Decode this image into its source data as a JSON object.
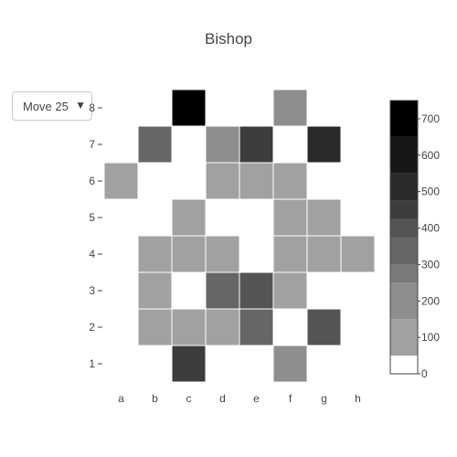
{
  "title": "Bishop",
  "dropdown": {
    "selected": "Move 25",
    "arrow_icon": "triangle-down-icon"
  },
  "chart_data": {
    "type": "heatmap",
    "title": "Bishop",
    "x_categories": [
      "a",
      "b",
      "c",
      "d",
      "e",
      "f",
      "g",
      "h"
    ],
    "y_categories": [
      "1",
      "2",
      "3",
      "4",
      "5",
      "6",
      "7",
      "8"
    ],
    "z": [
      [
        0,
        0,
        450,
        0,
        0,
        250,
        0,
        0
      ],
      [
        0,
        100,
        100,
        100,
        350,
        0,
        400,
        0
      ],
      [
        0,
        100,
        0,
        350,
        400,
        100,
        0,
        0
      ],
      [
        0,
        100,
        100,
        100,
        0,
        100,
        100,
        100
      ],
      [
        0,
        0,
        100,
        0,
        0,
        100,
        100,
        0
      ],
      [
        100,
        0,
        0,
        100,
        100,
        100,
        0,
        0
      ],
      [
        0,
        350,
        0,
        200,
        450,
        0,
        500,
        0
      ],
      [
        0,
        0,
        750,
        0,
        0,
        200,
        0,
        0
      ]
    ],
    "colorscale": {
      "min": 0,
      "max": 750,
      "ticks": [
        0,
        100,
        200,
        300,
        400,
        500,
        600,
        700
      ],
      "bands": [
        {
          "from": 0,
          "to": 50,
          "color": "#ffffff"
        },
        {
          "from": 50,
          "to": 150,
          "color": "#a1a1a1"
        },
        {
          "from": 150,
          "to": 250,
          "color": "#8e8e8e"
        },
        {
          "from": 250,
          "to": 300,
          "color": "#7a7a7a"
        },
        {
          "from": 300,
          "to": 375,
          "color": "#666666"
        },
        {
          "from": 375,
          "to": 425,
          "color": "#545454"
        },
        {
          "from": 425,
          "to": 475,
          "color": "#3d3d3d"
        },
        {
          "from": 475,
          "to": 550,
          "color": "#2a2a2a"
        },
        {
          "from": 550,
          "to": 650,
          "color": "#171717"
        },
        {
          "from": 650,
          "to": 750,
          "color": "#000000"
        }
      ]
    }
  }
}
